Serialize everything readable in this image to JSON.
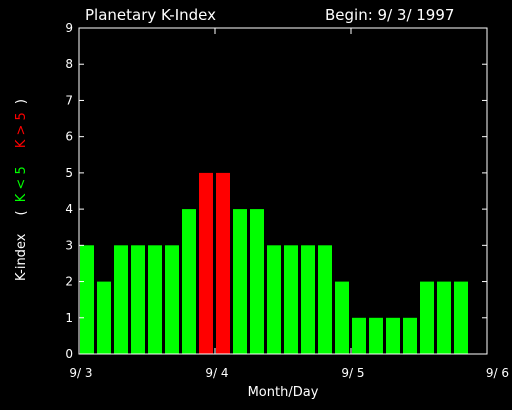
{
  "chart_data": {
    "type": "bar",
    "title": "Planetary K-Index",
    "subtitle": "Begin: 9/ 3/ 1997",
    "xlabel": "Month/Day",
    "ylabel": {
      "prefix": "K-index",
      "legend_open": "(",
      "green_label": "K < 5",
      "red_label": "K > 5",
      "legend_close": ")"
    },
    "ylim": [
      0,
      9
    ],
    "yticks": [
      "0",
      "1",
      "2",
      "3",
      "4",
      "5",
      "6",
      "7",
      "8",
      "9"
    ],
    "xticks": [
      "9/ 3",
      "9/ 4",
      "9/ 5",
      "9/ 6"
    ],
    "values": [
      3,
      2,
      3,
      3,
      3,
      3,
      4,
      5,
      5,
      4,
      4,
      3,
      3,
      3,
      3,
      2,
      1,
      1,
      1,
      1,
      2,
      2,
      2
    ],
    "threshold": 5,
    "colors": {
      "below": "#00ff00",
      "at_or_above": "#ff0000",
      "axes": "#ffffff",
      "background": "#000000"
    },
    "grid": false
  }
}
